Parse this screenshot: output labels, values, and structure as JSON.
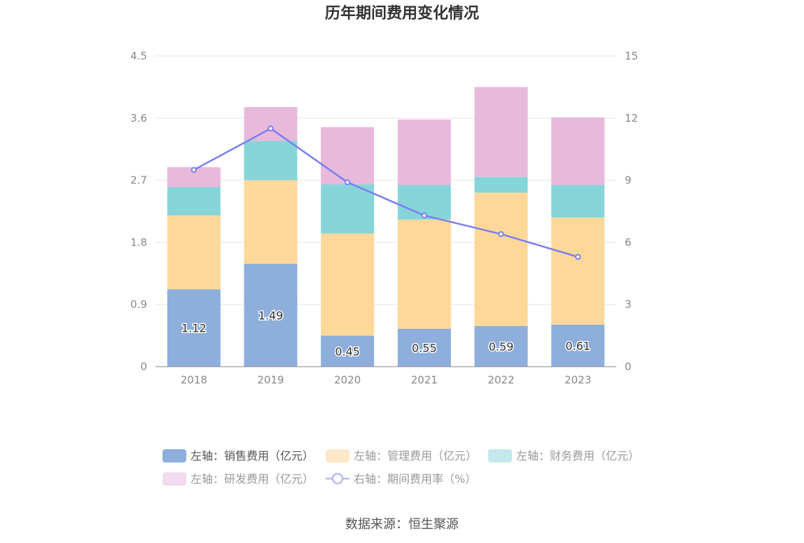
{
  "chart_data": {
    "type": "bar",
    "title": "历年期间费用变化情况",
    "categories": [
      "2018",
      "2019",
      "2020",
      "2021",
      "2022",
      "2023"
    ],
    "left_axis": {
      "min": 0,
      "max": 4.5,
      "ticks": [
        "0",
        "0.9",
        "1.8",
        "2.7",
        "3.6",
        "4.5"
      ],
      "tick_values": [
        0,
        0.9,
        1.8,
        2.7,
        3.6,
        4.5
      ]
    },
    "right_axis": {
      "min": 0,
      "max": 15,
      "ticks": [
        "0",
        "3",
        "6",
        "9",
        "12",
        "15"
      ],
      "tick_values": [
        0,
        3,
        6,
        9,
        12,
        15
      ]
    },
    "series": [
      {
        "name": "左轴：销售费用（亿元）",
        "type": "bar",
        "stack": true,
        "axis": "left",
        "color": "#8eaedb",
        "values": [
          1.12,
          1.49,
          0.45,
          0.55,
          0.59,
          0.61
        ],
        "labels": [
          "1.12",
          "1.49",
          "0.45",
          "0.55",
          "0.59",
          "0.61"
        ]
      },
      {
        "name": "左轴：管理费用（亿元）",
        "type": "bar",
        "stack": true,
        "axis": "left",
        "color": "#fed899",
        "values": [
          1.07,
          1.21,
          1.48,
          1.58,
          1.93,
          1.55
        ]
      },
      {
        "name": "左轴：财务费用（亿元）",
        "type": "bar",
        "stack": true,
        "axis": "left",
        "color": "#86d5d9",
        "values": [
          0.41,
          0.57,
          0.71,
          0.5,
          0.23,
          0.47
        ]
      },
      {
        "name": "左轴：研发费用（亿元）",
        "type": "bar",
        "stack": true,
        "axis": "left",
        "color": "#e7b9db",
        "values": [
          0.29,
          0.49,
          0.83,
          0.95,
          1.3,
          0.98
        ]
      },
      {
        "name": "右轴：期间费用率（%）",
        "type": "line",
        "axis": "right",
        "color": "#7b7ff0",
        "values": [
          9.5,
          11.5,
          8.9,
          7.3,
          6.4,
          5.3
        ]
      }
    ]
  },
  "legend": {
    "items": [
      {
        "label": "左轴：销售费用（亿元）",
        "swatch": "#8eaedb",
        "active": true
      },
      {
        "label": "左轴：管理费用（亿元）",
        "swatch": "#fde9c8",
        "active": false
      },
      {
        "label": "左轴：财务费用（亿元）",
        "swatch": "#c3e9ec",
        "active": false
      },
      {
        "label": "左轴：研发费用（亿元）",
        "swatch": "#f2dbee",
        "active": false
      },
      {
        "label": "右轴：期间费用率（%）",
        "swatch": "#b9bbf5",
        "active": false
      }
    ]
  },
  "source": "数据来源：恒生聚源"
}
